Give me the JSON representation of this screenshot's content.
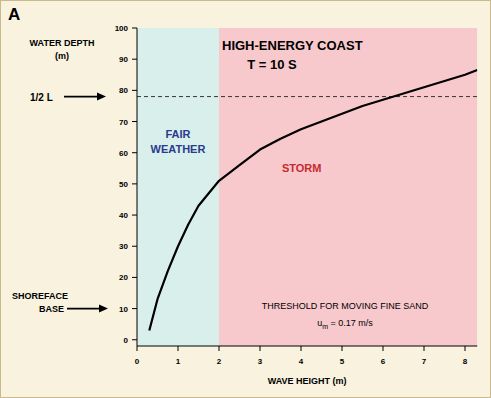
{
  "chart_data": {
    "type": "line",
    "panel_label": "A",
    "title": "HIGH-ENERGY COAST",
    "subtitle": "T = 10 S",
    "xlabel": "WAVE HEIGHT (m)",
    "ylabel": [
      "WATER DEPTH",
      "(m)"
    ],
    "x": [
      0.3,
      0.5,
      0.75,
      1,
      1.25,
      1.5,
      1.75,
      2,
      2.5,
      3,
      3.5,
      4,
      4.5,
      5,
      5.5,
      6,
      6.5,
      7,
      7.5,
      8,
      8.3
    ],
    "values": [
      3,
      13,
      22,
      30,
      37,
      43,
      47,
      51,
      56,
      61,
      64.5,
      67.5,
      70,
      72.5,
      75,
      77,
      79,
      81,
      83,
      85,
      86.5
    ],
    "color": "#000000",
    "xlim": [
      0,
      8.3
    ],
    "ylim": [
      -2,
      100
    ],
    "xticks": [
      0,
      1,
      2,
      3,
      4,
      5,
      6,
      7,
      8
    ],
    "yticks": [
      0,
      10,
      20,
      30,
      40,
      50,
      60,
      70,
      80,
      90,
      100
    ],
    "regions": [
      {
        "label": "FAIR WEATHER",
        "from": 0,
        "to": 2,
        "color": "#d8efec"
      },
      {
        "label": "STORM",
        "from": 2,
        "to": 8.3,
        "color": "#f8c9cc"
      }
    ],
    "reference_lines": [
      {
        "value": 78,
        "label": "1/2 L",
        "line_style": "dashed"
      },
      {
        "value": 10,
        "label": "SHOREFACE BASE"
      }
    ],
    "annotations": [
      {
        "text": "THRESHOLD FOR MOVING FINE SAND"
      },
      {
        "symbol": "u",
        "subscript": "m",
        "text": " = 0.17 m/s"
      }
    ]
  }
}
